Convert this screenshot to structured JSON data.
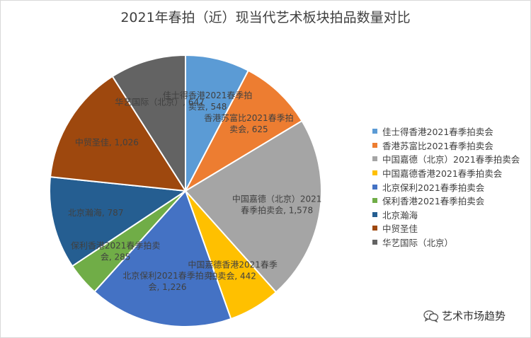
{
  "chart_data": {
    "type": "pie",
    "title": "2021年春拍（近）现当代艺术板块拍品数量对比",
    "slices": [
      {
        "name": "佳士得香港2021春季拍卖会",
        "value": 548,
        "label_lines": [
          "佳士得香港2021春季拍",
          "卖会, 548"
        ],
        "color": "#5b9bd5"
      },
      {
        "name": "香港苏富比2021春季拍卖会",
        "value": 625,
        "label_lines": [
          "香港苏富比2021春季拍",
          "卖会, 625"
        ],
        "color": "#ed7d31"
      },
      {
        "name": "中国嘉德（北京）2021春季拍卖会",
        "value": 1578,
        "label_lines": [
          "中国嘉德（北京）2021",
          "春季拍卖会, 1,578"
        ],
        "color": "#a5a5a5"
      },
      {
        "name": "中国嘉德香港2021春季拍卖会",
        "value": 442,
        "label_lines": [
          "中国嘉德香港2021春季",
          "拍卖会, 442"
        ],
        "color": "#ffc000"
      },
      {
        "name": "北京保利2021春季拍卖会",
        "value": 1226,
        "label_lines": [
          "北京保利2021春季拍卖",
          "会, 1,226"
        ],
        "color": "#4472c4"
      },
      {
        "name": "保利香港2021春季拍卖会",
        "value": 285,
        "label_lines": [
          "保利香港2021春季拍卖",
          "会, 285"
        ],
        "color": "#70ad47"
      },
      {
        "name": "北京瀚海",
        "value": 787,
        "label_lines": [
          "北京瀚海, 787"
        ],
        "color": "#255e91"
      },
      {
        "name": "中贸圣佳",
        "value": 1026,
        "label_lines": [
          "中贸圣佳, 1,026"
        ],
        "color": "#9e480e"
      },
      {
        "name": "华艺国际（北京）",
        "value": 647,
        "label_lines": [
          "华艺国际（北京）, 647"
        ],
        "color": "#636363"
      }
    ],
    "legend_position": "right"
  },
  "watermark": {
    "icon": "wechat-icon",
    "text": "艺术市场趋势"
  }
}
